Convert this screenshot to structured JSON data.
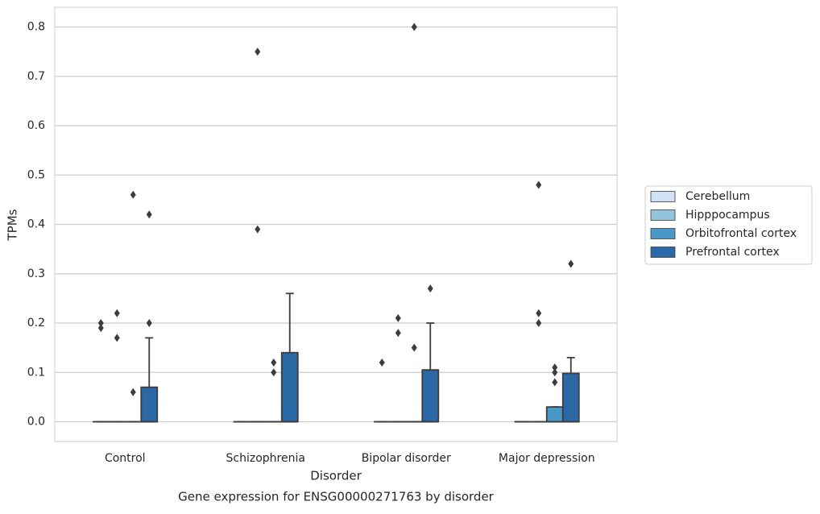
{
  "chart_data": {
    "type": "box",
    "title": "Gene expression for ENSG00000271763 by disorder",
    "x_label": "Disorder",
    "y_label": "TPMs",
    "categories": [
      "Control",
      "Schizophrenia",
      "Bipolar disorder",
      "Major depression"
    ],
    "series": [
      {
        "name": "Cerebellum",
        "color": "#cfe1f2",
        "boxes": [
          {
            "whislo": 0,
            "q1": 0,
            "median": 0,
            "q3": 0,
            "whishi": 0,
            "fliers": [
              0.2,
              0.19
            ]
          },
          {
            "whislo": 0,
            "q1": 0,
            "median": 0,
            "q3": 0,
            "whishi": 0,
            "fliers": []
          },
          {
            "whislo": 0,
            "q1": 0,
            "median": 0,
            "q3": 0,
            "whishi": 0,
            "fliers": [
              0.12
            ]
          },
          {
            "whislo": 0,
            "q1": 0,
            "median": 0,
            "q3": 0,
            "whishi": 0,
            "fliers": []
          }
        ]
      },
      {
        "name": "Hipppocampus",
        "color": "#93c4de",
        "boxes": [
          {
            "whislo": 0,
            "q1": 0,
            "median": 0,
            "q3": 0,
            "whishi": 0,
            "fliers": [
              0.22,
              0.17
            ]
          },
          {
            "whislo": 0,
            "q1": 0,
            "median": 0,
            "q3": 0,
            "whishi": 0,
            "fliers": [
              0.75,
              0.39
            ]
          },
          {
            "whislo": 0,
            "q1": 0,
            "median": 0,
            "q3": 0,
            "whishi": 0,
            "fliers": [
              0.21,
              0.18
            ]
          },
          {
            "whislo": 0,
            "q1": 0,
            "median": 0,
            "q3": 0,
            "whishi": 0,
            "fliers": [
              0.48,
              0.22,
              0.2
            ]
          }
        ]
      },
      {
        "name": "Orbitofrontal cortex",
        "color": "#4a98c9",
        "boxes": [
          {
            "whislo": 0,
            "q1": 0,
            "median": 0,
            "q3": 0,
            "whishi": 0,
            "fliers": [
              0.46,
              0.06
            ]
          },
          {
            "whislo": 0,
            "q1": 0,
            "median": 0,
            "q3": 0,
            "whishi": 0,
            "fliers": [
              0.12,
              0.1
            ]
          },
          {
            "whislo": 0,
            "q1": 0,
            "median": 0,
            "q3": 0,
            "whishi": 0,
            "fliers": [
              0.8,
              0.15
            ]
          },
          {
            "whislo": 0,
            "q1": 0,
            "median": 0,
            "q3": 0.03,
            "whishi": 0.03,
            "fliers": [
              0.11,
              0.1,
              0.08
            ]
          }
        ]
      },
      {
        "name": "Prefrontal cortex",
        "color": "#2a68a6",
        "boxes": [
          {
            "whislo": 0,
            "q1": 0,
            "median": 0,
            "q3": 0.07,
            "whishi": 0.17,
            "fliers": [
              0.42,
              0.2
            ]
          },
          {
            "whislo": 0,
            "q1": 0,
            "median": 0,
            "q3": 0.14,
            "whishi": 0.26,
            "fliers": []
          },
          {
            "whislo": 0,
            "q1": 0,
            "median": 0,
            "q3": 0.105,
            "whishi": 0.2,
            "fliers": [
              0.27
            ]
          },
          {
            "whislo": 0,
            "q1": 0,
            "median": 0,
            "q3": 0.098,
            "whishi": 0.13,
            "fliers": [
              0.32
            ]
          }
        ]
      }
    ],
    "ylim": [
      -0.04,
      0.84
    ],
    "yticks": [
      {
        "value": 0,
        "label": "0.0"
      },
      0.1,
      0.2,
      0.3,
      0.4,
      0.5,
      0.6,
      0.7,
      0.8
    ],
    "grid": true,
    "legend": "right"
  }
}
